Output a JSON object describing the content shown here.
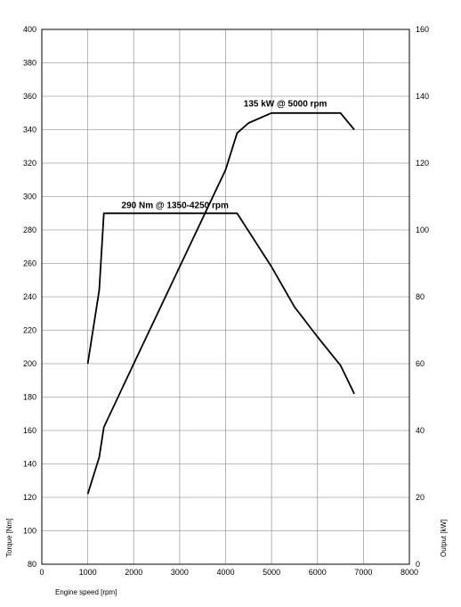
{
  "chart_data": {
    "type": "line",
    "xlabel": "Engine speed [rpm]",
    "ylabel_left": "Torque [Nm]",
    "ylabel_right": "Output [kW]",
    "xlim": [
      0,
      8000
    ],
    "ylim_left": [
      80,
      400
    ],
    "ylim_right": [
      0,
      160
    ],
    "x_ticks": [
      "0",
      "1000",
      "2000",
      "3000",
      "4000",
      "5000",
      "6000",
      "7000",
      "8000"
    ],
    "y_left_ticks": [
      "80",
      "100",
      "120",
      "140",
      "160",
      "180",
      "200",
      "220",
      "240",
      "260",
      "280",
      "300",
      "320",
      "340",
      "360",
      "380",
      "400"
    ],
    "y_right_ticks": [
      "0",
      "20",
      "40",
      "60",
      "80",
      "100",
      "120",
      "140",
      "160"
    ],
    "grid": true,
    "legend": "none",
    "series": [
      {
        "axis": "left",
        "color": "#000000",
        "x": [
          1000,
          1250,
          1350,
          4250,
          5000,
          5500,
          6000,
          6500,
          6800
        ],
        "values": [
          200,
          244,
          290,
          290,
          258,
          234,
          216,
          199,
          182
        ]
      },
      {
        "axis": "right",
        "color": "#000000",
        "x": [
          1000,
          1250,
          1350,
          2000,
          3000,
          4000,
          4250,
          4500,
          5000,
          6500,
          6800
        ],
        "values": [
          21,
          32,
          41,
          60,
          89,
          118,
          129,
          132,
          135,
          135,
          130
        ]
      }
    ],
    "annotations": [
      {
        "text": "290 Nm @ 1350-4250 rpm",
        "x": 2900,
        "y_left": 293
      },
      {
        "text": "135 kW @ 5000 rpm",
        "x": 5300,
        "y_left": 354
      }
    ]
  }
}
